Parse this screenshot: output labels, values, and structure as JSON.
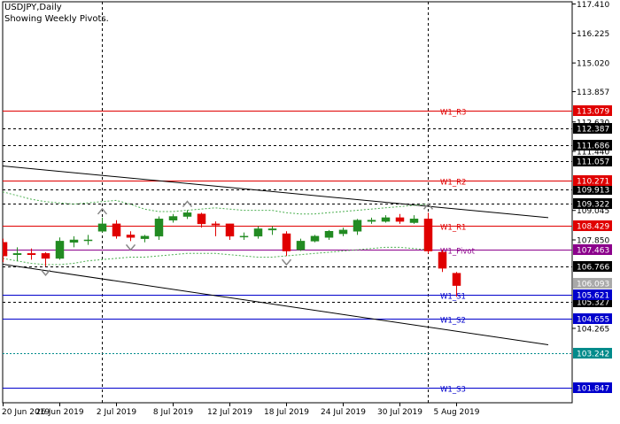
{
  "header": {
    "symbol": "USDJPY,Daily",
    "subtitle": "Showing Weekly Pivots."
  },
  "colors": {
    "bull": "#228B22",
    "bear": "#E00000",
    "resistance": "#E00000",
    "support": "#0000CC",
    "pivot": "#8B008B",
    "channel": "#000000",
    "band": "#4CAF50",
    "dashed_level": "#000000",
    "dotted_cyan": "#008B8B",
    "grid": "#000000"
  },
  "chart_data": {
    "type": "candlestick",
    "ylim": [
      101.25,
      117.5
    ],
    "y_ticks": [
      "117.410",
      "116.225",
      "115.020",
      "113.857",
      "112.630",
      "111.440",
      "109.045",
      "107.850",
      "104.265"
    ],
    "x_ticks": [
      "20 Jun 2019",
      "26 Jun 2019",
      "2 Jul 2019",
      "8 Jul 2019",
      "12 Jul 2019",
      "18 Jul 2019",
      "24 Jul 2019",
      "30 Jul 2019",
      "5 Aug 2019"
    ],
    "candles": [
      {
        "o": 107.75,
        "h": 107.9,
        "l": 106.95,
        "c": 107.2
      },
      {
        "o": 107.25,
        "h": 107.55,
        "l": 107.0,
        "c": 107.3
      },
      {
        "o": 107.3,
        "h": 107.5,
        "l": 107.05,
        "c": 107.25
      },
      {
        "o": 107.3,
        "h": 107.35,
        "l": 106.78,
        "c": 107.1
      },
      {
        "o": 107.1,
        "h": 107.95,
        "l": 107.05,
        "c": 107.8
      },
      {
        "o": 107.75,
        "h": 108.0,
        "l": 107.55,
        "c": 107.85
      },
      {
        "o": 107.85,
        "h": 108.05,
        "l": 107.65,
        "c": 107.85
      },
      {
        "o": 108.2,
        "h": 108.75,
        "l": 108.15,
        "c": 108.5
      },
      {
        "o": 108.5,
        "h": 108.65,
        "l": 107.9,
        "c": 108.0
      },
      {
        "o": 108.05,
        "h": 108.2,
        "l": 107.8,
        "c": 107.95
      },
      {
        "o": 107.9,
        "h": 108.05,
        "l": 107.75,
        "c": 108.0
      },
      {
        "o": 108.0,
        "h": 108.8,
        "l": 107.85,
        "c": 108.7
      },
      {
        "o": 108.65,
        "h": 108.9,
        "l": 108.55,
        "c": 108.8
      },
      {
        "o": 108.8,
        "h": 109.05,
        "l": 108.7,
        "c": 108.95
      },
      {
        "o": 108.9,
        "h": 108.95,
        "l": 108.35,
        "c": 108.5
      },
      {
        "o": 108.5,
        "h": 108.6,
        "l": 108.0,
        "c": 108.45
      },
      {
        "o": 108.5,
        "h": 108.5,
        "l": 107.85,
        "c": 108.0
      },
      {
        "o": 108.0,
        "h": 108.15,
        "l": 107.85,
        "c": 108.0
      },
      {
        "o": 108.0,
        "h": 108.4,
        "l": 107.9,
        "c": 108.3
      },
      {
        "o": 108.25,
        "h": 108.4,
        "l": 108.05,
        "c": 108.3
      },
      {
        "o": 108.1,
        "h": 108.2,
        "l": 107.2,
        "c": 107.4
      },
      {
        "o": 107.45,
        "h": 107.9,
        "l": 107.4,
        "c": 107.8
      },
      {
        "o": 107.8,
        "h": 108.05,
        "l": 107.75,
        "c": 108.0
      },
      {
        "o": 107.95,
        "h": 108.25,
        "l": 107.85,
        "c": 108.2
      },
      {
        "o": 108.1,
        "h": 108.35,
        "l": 108.0,
        "c": 108.25
      },
      {
        "o": 108.2,
        "h": 108.7,
        "l": 108.05,
        "c": 108.65
      },
      {
        "o": 108.6,
        "h": 108.75,
        "l": 108.5,
        "c": 108.65
      },
      {
        "o": 108.6,
        "h": 108.85,
        "l": 108.55,
        "c": 108.75
      },
      {
        "o": 108.75,
        "h": 108.9,
        "l": 108.5,
        "c": 108.6
      },
      {
        "o": 108.55,
        "h": 108.85,
        "l": 108.5,
        "c": 108.7
      },
      {
        "o": 108.7,
        "h": 108.95,
        "l": 107.3,
        "c": 107.4
      },
      {
        "o": 107.35,
        "h": 107.45,
        "l": 106.55,
        "c": 106.7
      },
      {
        "o": 106.5,
        "h": 106.55,
        "l": 105.55,
        "c": 106.0
      }
    ],
    "pivot_levels": [
      {
        "label": "W1_R3",
        "value": 113.079,
        "tag": "113.079",
        "kind": "resistance"
      },
      {
        "label": "W1_R2",
        "value": 110.271,
        "tag": "110.271",
        "kind": "resistance"
      },
      {
        "label": "W1_R1",
        "value": 108.429,
        "tag": "108.429",
        "kind": "resistance"
      },
      {
        "label": "W1_Pivot",
        "value": 107.463,
        "tag": "107.463",
        "kind": "pivot"
      },
      {
        "label": "W1_S1",
        "value": 105.621,
        "tag": "105.621",
        "kind": "support"
      },
      {
        "label": "W1_S2",
        "value": 104.655,
        "tag": "104.655",
        "kind": "support"
      },
      {
        "label": "W1_S3",
        "value": 101.847,
        "tag": "101.847",
        "kind": "support"
      }
    ],
    "dashed_levels": [
      {
        "value": 112.387,
        "tag": "112.387"
      },
      {
        "value": 111.686,
        "tag": "111.686"
      },
      {
        "value": 111.057,
        "tag": "111.057"
      },
      {
        "value": 109.913,
        "tag": "109.913"
      },
      {
        "value": 109.322,
        "tag": "109.322"
      },
      {
        "value": 106.766,
        "tag": "106.766"
      },
      {
        "value": 105.327,
        "tag": "105.327"
      }
    ],
    "cyan_dotted_levels": [
      {
        "value": 103.242,
        "tag": "103.242"
      }
    ],
    "gray_tags": [
      {
        "value": 106.093,
        "tag": "106.093"
      }
    ],
    "trend_lines": [
      {
        "i1": -1,
        "p1": 110.9,
        "i2": 38.5,
        "p2": 108.75
      },
      {
        "i1": -1,
        "p1": 106.95,
        "i2": 38.5,
        "p2": 103.6
      }
    ],
    "band_upper": [
      109.8,
      109.65,
      109.5,
      109.4,
      109.35,
      109.3,
      109.35,
      109.4,
      109.45,
      109.3,
      109.1,
      109.0,
      109.0,
      109.05,
      109.1,
      109.15,
      109.1,
      109.05,
      109.05,
      109.05,
      108.95,
      108.9,
      108.9,
      108.95,
      109.0,
      109.05,
      109.1,
      109.15,
      109.2,
      109.25,
      109.3
    ],
    "band_lower": [
      107.1,
      107.0,
      106.9,
      106.85,
      106.85,
      106.9,
      107.0,
      107.05,
      107.1,
      107.15,
      107.15,
      107.2,
      107.25,
      107.3,
      107.3,
      107.3,
      107.25,
      107.2,
      107.15,
      107.15,
      107.2,
      107.25,
      107.3,
      107.35,
      107.4,
      107.45,
      107.5,
      107.55,
      107.55,
      107.5,
      107.45
    ],
    "fractals_up": [
      7,
      13,
      30
    ],
    "fractals_down": [
      3,
      9,
      20
    ],
    "vertical_markers": [
      7,
      30
    ]
  }
}
